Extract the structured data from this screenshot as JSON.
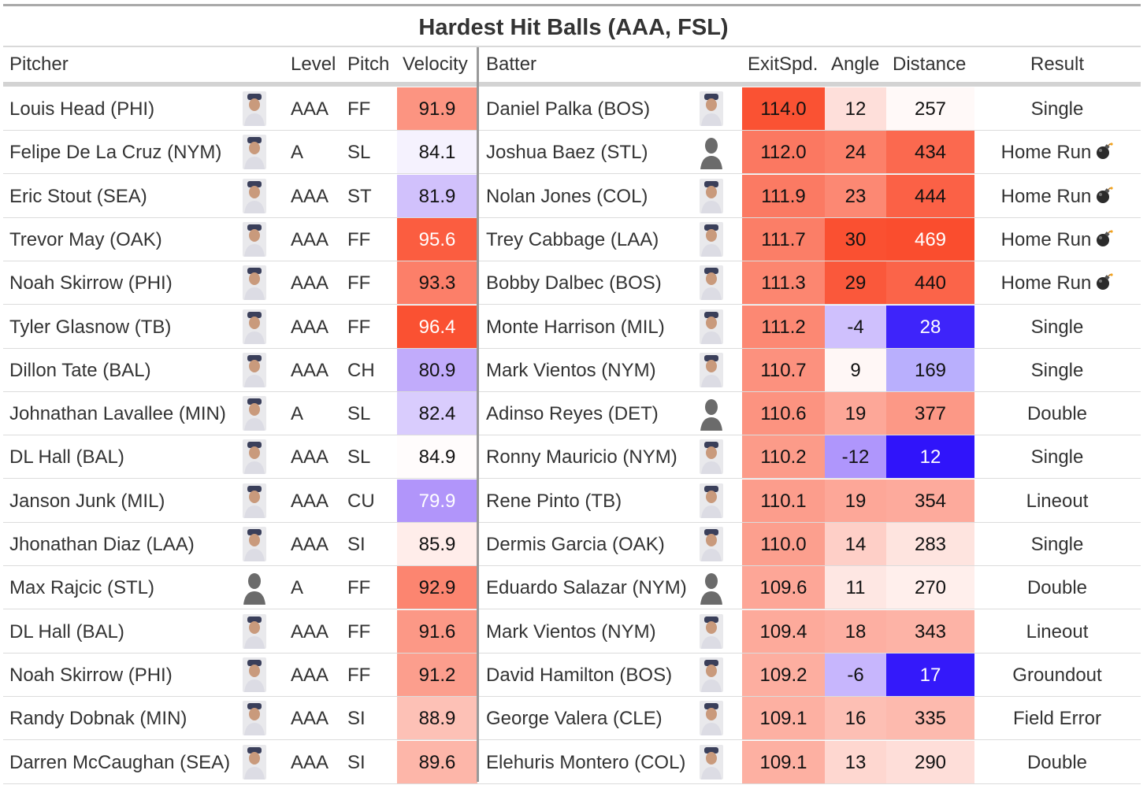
{
  "table": {
    "title": "Hardest Hit Balls (AAA, FSL)",
    "headers": {
      "pitcher": "Pitcher",
      "level": "Level",
      "pitch": "Pitch",
      "velocity": "Velocity",
      "batter": "Batter",
      "exitspd": "ExitSpd.",
      "angle": "Angle",
      "distance": "Distance",
      "result": "Result"
    },
    "rows": [
      {
        "pitcher": "Louis Head (PHI)",
        "pitcher_photo": "player-headshot",
        "level": "AAA",
        "pitch": "FF",
        "velocity": "91.9",
        "batter": "Daniel Palka (BOS)",
        "batter_photo": "player-headshot",
        "exitspd": "114.0",
        "angle": "12",
        "distance": "257",
        "result": "Single",
        "home_run_icon": false
      },
      {
        "pitcher": "Felipe De La Cruz (NYM)",
        "pitcher_photo": "player-headshot",
        "level": "A",
        "pitch": "SL",
        "velocity": "84.1",
        "batter": "Joshua Baez (STL)",
        "batter_photo": "silhouette",
        "exitspd": "112.0",
        "angle": "24",
        "distance": "434",
        "result": "Home Run",
        "home_run_icon": true
      },
      {
        "pitcher": "Eric Stout (SEA)",
        "pitcher_photo": "player-headshot",
        "level": "AAA",
        "pitch": "ST",
        "velocity": "81.9",
        "batter": "Nolan Jones (COL)",
        "batter_photo": "player-headshot",
        "exitspd": "111.9",
        "angle": "23",
        "distance": "444",
        "result": "Home Run",
        "home_run_icon": true
      },
      {
        "pitcher": "Trevor May (OAK)",
        "pitcher_photo": "player-headshot",
        "level": "AAA",
        "pitch": "FF",
        "velocity": "95.6",
        "batter": "Trey Cabbage (LAA)",
        "batter_photo": "player-headshot",
        "exitspd": "111.7",
        "angle": "30",
        "distance": "469",
        "result": "Home Run",
        "home_run_icon": true
      },
      {
        "pitcher": "Noah Skirrow (PHI)",
        "pitcher_photo": "player-headshot",
        "level": "AAA",
        "pitch": "FF",
        "velocity": "93.3",
        "batter": "Bobby Dalbec (BOS)",
        "batter_photo": "player-headshot",
        "exitspd": "111.3",
        "angle": "29",
        "distance": "440",
        "result": "Home Run",
        "home_run_icon": true
      },
      {
        "pitcher": "Tyler Glasnow (TB)",
        "pitcher_photo": "player-headshot",
        "level": "AAA",
        "pitch": "FF",
        "velocity": "96.4",
        "batter": "Monte Harrison (MIL)",
        "batter_photo": "player-headshot",
        "exitspd": "111.2",
        "angle": "-4",
        "distance": "28",
        "result": "Single",
        "home_run_icon": false
      },
      {
        "pitcher": "Dillon Tate (BAL)",
        "pitcher_photo": "player-headshot",
        "level": "AAA",
        "pitch": "CH",
        "velocity": "80.9",
        "batter": "Mark Vientos (NYM)",
        "batter_photo": "player-headshot",
        "exitspd": "110.7",
        "angle": "9",
        "distance": "169",
        "result": "Single",
        "home_run_icon": false
      },
      {
        "pitcher": "Johnathan Lavallee (MIN)",
        "pitcher_photo": "player-headshot",
        "level": "A",
        "pitch": "SL",
        "velocity": "82.4",
        "batter": "Adinso Reyes (DET)",
        "batter_photo": "silhouette",
        "exitspd": "110.6",
        "angle": "19",
        "distance": "377",
        "result": "Double",
        "home_run_icon": false
      },
      {
        "pitcher": "DL Hall (BAL)",
        "pitcher_photo": "player-headshot",
        "level": "AAA",
        "pitch": "SL",
        "velocity": "84.9",
        "batter": "Ronny Mauricio (NYM)",
        "batter_photo": "player-headshot",
        "exitspd": "110.2",
        "angle": "-12",
        "distance": "12",
        "result": "Single",
        "home_run_icon": false
      },
      {
        "pitcher": "Janson Junk (MIL)",
        "pitcher_photo": "player-headshot",
        "level": "AAA",
        "pitch": "CU",
        "velocity": "79.9",
        "batter": "Rene Pinto (TB)",
        "batter_photo": "player-headshot",
        "exitspd": "110.1",
        "angle": "19",
        "distance": "354",
        "result": "Lineout",
        "home_run_icon": false
      },
      {
        "pitcher": "Jhonathan Diaz (LAA)",
        "pitcher_photo": "player-headshot",
        "level": "AAA",
        "pitch": "SI",
        "velocity": "85.9",
        "batter": "Dermis Garcia (OAK)",
        "batter_photo": "player-headshot",
        "exitspd": "110.0",
        "angle": "14",
        "distance": "283",
        "result": "Single",
        "home_run_icon": false
      },
      {
        "pitcher": "Max Rajcic (STL)",
        "pitcher_photo": "silhouette",
        "level": "A",
        "pitch": "FF",
        "velocity": "92.9",
        "batter": "Eduardo Salazar (NYM)",
        "batter_photo": "silhouette",
        "exitspd": "109.6",
        "angle": "11",
        "distance": "270",
        "result": "Double",
        "home_run_icon": false
      },
      {
        "pitcher": "DL Hall (BAL)",
        "pitcher_photo": "player-headshot",
        "level": "AAA",
        "pitch": "FF",
        "velocity": "91.6",
        "batter": "Mark Vientos (NYM)",
        "batter_photo": "player-headshot",
        "exitspd": "109.4",
        "angle": "18",
        "distance": "343",
        "result": "Lineout",
        "home_run_icon": false
      },
      {
        "pitcher": "Noah Skirrow (PHI)",
        "pitcher_photo": "player-headshot",
        "level": "AAA",
        "pitch": "FF",
        "velocity": "91.2",
        "batter": "David Hamilton (BOS)",
        "batter_photo": "player-headshot",
        "exitspd": "109.2",
        "angle": "-6",
        "distance": "17",
        "result": "Groundout",
        "home_run_icon": false
      },
      {
        "pitcher": "Randy Dobnak (MIN)",
        "pitcher_photo": "player-headshot",
        "level": "AAA",
        "pitch": "SI",
        "velocity": "88.9",
        "batter": "George Valera (CLE)",
        "batter_photo": "player-headshot",
        "exitspd": "109.1",
        "angle": "16",
        "distance": "335",
        "result": "Field Error",
        "home_run_icon": false
      },
      {
        "pitcher": "Darren McCaughan (SEA)",
        "pitcher_photo": "player-headshot",
        "level": "AAA",
        "pitch": "SI",
        "velocity": "89.6",
        "batter": "Elehuris Montero (COL)",
        "batter_photo": "player-headshot",
        "exitspd": "109.1",
        "angle": "13",
        "distance": "290",
        "result": "Double",
        "home_run_icon": false
      }
    ]
  }
}
